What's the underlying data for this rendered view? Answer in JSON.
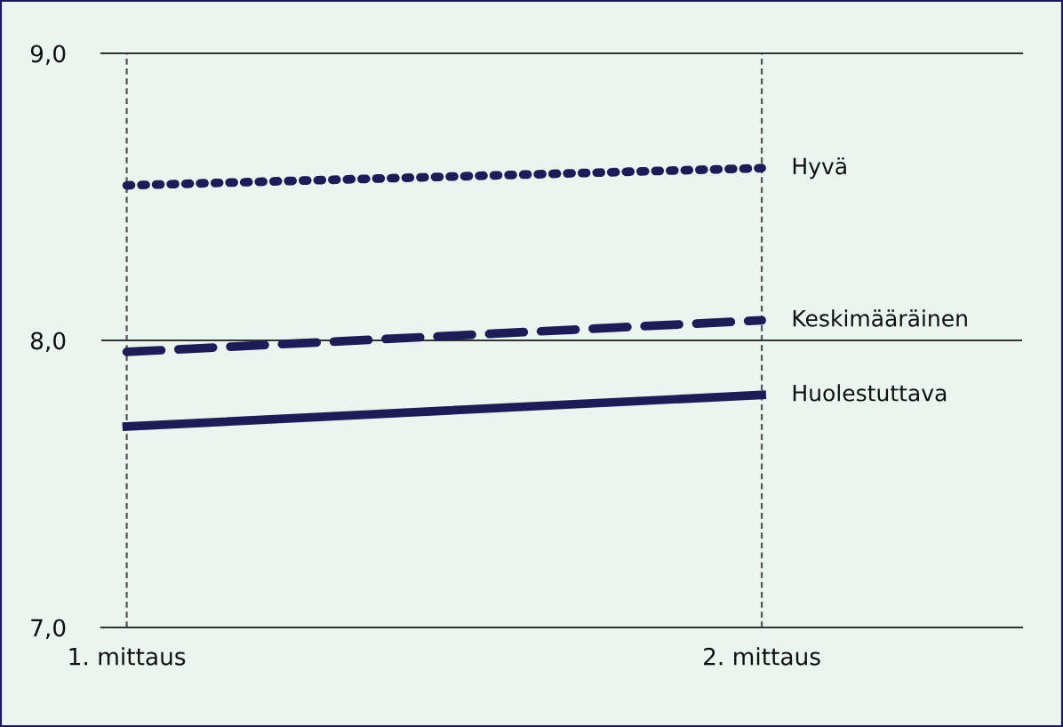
{
  "chart_data": {
    "type": "line",
    "categories": [
      "1. mittaus",
      "2. mittaus"
    ],
    "series": [
      {
        "name": "Hyvä",
        "color": "#1c1d57",
        "values": [
          8.54,
          8.6
        ],
        "line_style": "dotted"
      },
      {
        "name": "Keskimääräinen",
        "color": "#1c1d57",
        "values": [
          7.96,
          8.07
        ],
        "line_style": "dashed"
      },
      {
        "name": "Huolestuttava",
        "color": "#1c1d57",
        "values": [
          7.7,
          7.81
        ],
        "line_style": "solid"
      }
    ],
    "ylim": [
      7,
      9
    ],
    "yticks": [
      {
        "value": 7,
        "label": "7,0"
      },
      {
        "value": 8,
        "label": "8,0"
      },
      {
        "value": 9,
        "label": "9,0"
      }
    ],
    "grid": "x",
    "ref_lines": [
      {
        "axis": "y",
        "value": 8,
        "color": "#333333"
      }
    ],
    "legend": false,
    "marker": "none"
  }
}
